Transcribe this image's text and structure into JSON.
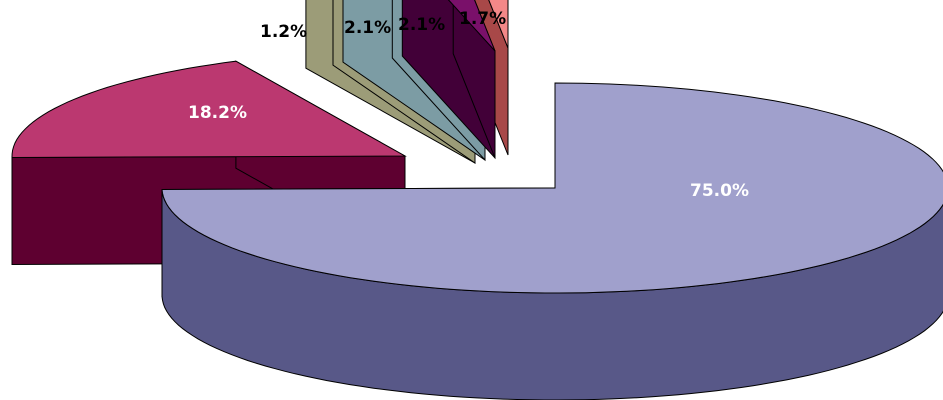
{
  "chart_data": {
    "type": "pie",
    "style": "3d-exploded",
    "legend": "none",
    "slices": [
      {
        "value": 75.0,
        "label": "75.0%",
        "top_color": "#A0A0CC",
        "side_color": "#585888",
        "label_color": "#ffffff"
      },
      {
        "value": 18.2,
        "label": "18.2%",
        "top_color": "#BB3870",
        "side_color": "#5E0030",
        "label_color": "#ffffff"
      },
      {
        "value": 1.2,
        "label": "1.2%",
        "top_color": "#FFFFCC",
        "side_color": "#9C9C78",
        "label_color": "#000000"
      },
      {
        "value": 2.1,
        "label": "2.1%",
        "top_color": "#CCEAF0",
        "side_color": "#7C9CA4",
        "label_color": "#000000"
      },
      {
        "value": 2.1,
        "label": "2.1%",
        "top_color": "#7A106A",
        "side_color": "#420038",
        "label_color": "#000000"
      },
      {
        "value": 1.7,
        "label": "1.7%",
        "top_color": "#F48888",
        "side_color": "#A84848",
        "label_color": "#000000"
      }
    ]
  }
}
